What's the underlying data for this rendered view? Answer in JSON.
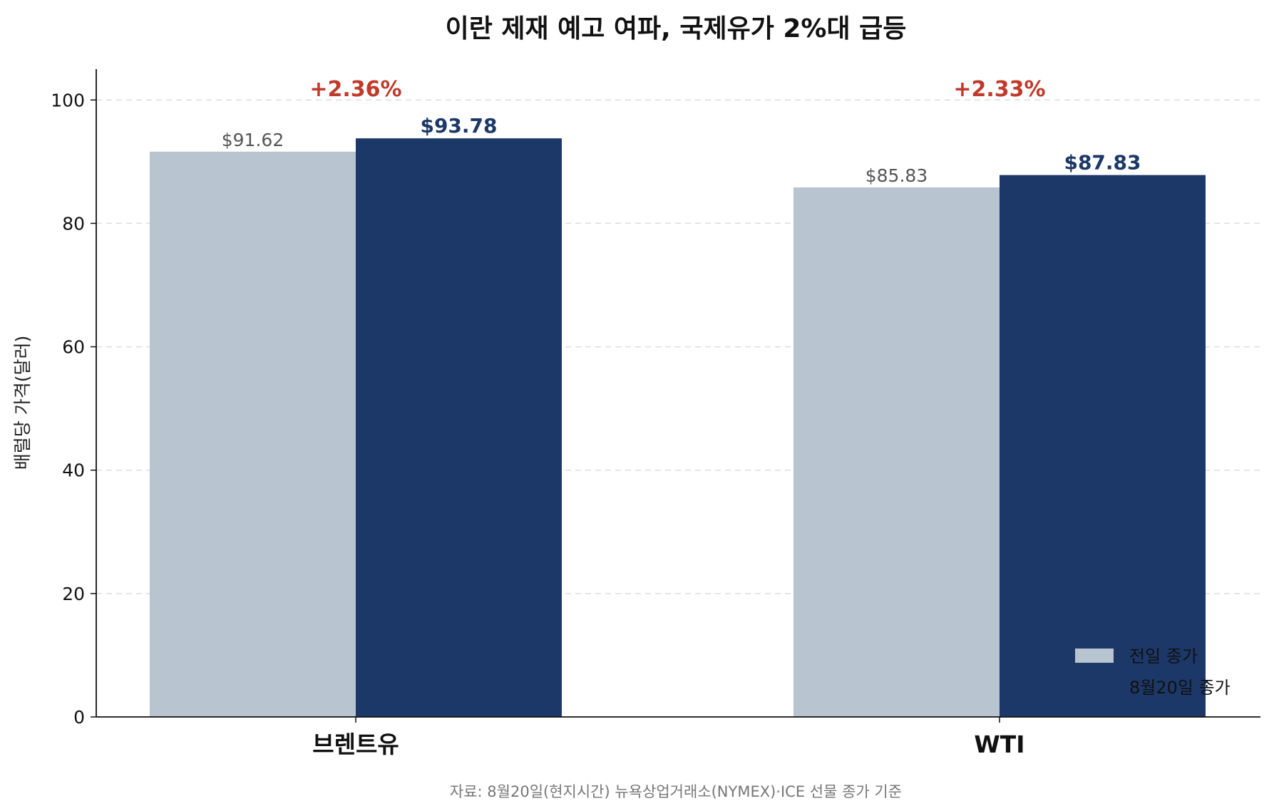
{
  "chart_data": {
    "type": "bar",
    "title": "이란 제재 예고 여파, 국제유가 2%대 급등",
    "ylabel": "배럴당 가격(달러)",
    "xlabel": "",
    "ylim": [
      0,
      105
    ],
    "yticks": [
      0,
      20,
      40,
      60,
      80,
      100
    ],
    "grid": "y-dashed",
    "categories": [
      "브렌트유",
      "WTI"
    ],
    "series": [
      {
        "name": "전일 종가",
        "values": [
          91.62,
          85.83
        ],
        "labels": [
          "$91.62",
          "$85.83"
        ],
        "color": "#b8c4d0"
      },
      {
        "name": "8월20일 종가",
        "values": [
          93.78,
          87.83
        ],
        "labels": [
          "$93.78",
          "$87.83"
        ],
        "color": "#1c3868"
      }
    ],
    "changes": [
      "+2.36%",
      "+2.33%"
    ],
    "legend": "bottom-right",
    "source": "자료: 8월20일(현지시간) 뉴욕상업거래소(NYMEX)·ICE 선물 종가 기준"
  },
  "colors": {
    "previous": "#b8c4d0",
    "current": "#1c3868",
    "change": "#c0392b"
  }
}
